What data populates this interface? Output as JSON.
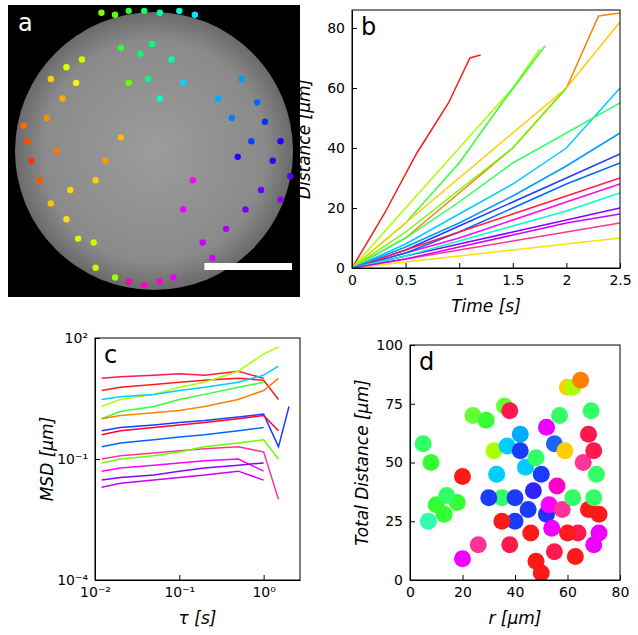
{
  "chart_data": [
    {
      "type": "scatter",
      "title": "a",
      "tick_labels": false,
      "xlim": [
        0,
        150
      ],
      "ylim": [
        0,
        150
      ],
      "scale_bar": 45,
      "x": [
        48,
        55,
        62,
        70,
        78,
        88,
        96,
        58,
        68,
        74,
        84,
        62,
        72,
        90,
        78,
        8,
        10,
        12,
        20,
        25,
        16,
        22,
        30,
        38,
        28,
        35,
        22,
        30,
        36,
        45,
        55,
        32,
        44,
        62,
        70,
        78,
        85,
        120,
        128,
        132,
        140,
        136,
        125,
        115,
        108,
        118,
        130,
        140,
        122,
        112,
        100,
        105,
        145,
        50,
        58,
        95,
        90,
        45
      ],
      "values": [
        146,
        145,
        147,
        147,
        146,
        147,
        145,
        128,
        125,
        130,
        122,
        110,
        112,
        110,
        102,
        88,
        80,
        70,
        92,
        75,
        60,
        112,
        118,
        122,
        102,
        110,
        48,
        40,
        30,
        15,
        10,
        55,
        28,
        8,
        6,
        8,
        10,
        112,
        100,
        90,
        80,
        70,
        80,
        92,
        102,
        72,
        55,
        50,
        45,
        35,
        28,
        20,
        62,
        70,
        82,
        60,
        45,
        60
      ],
      "colors": [
        "#7fff00",
        "#5fff10",
        "#33ff33",
        "#1aff66",
        "#00ff99",
        "#00ffcc",
        "#00e5ff",
        "#33ff33",
        "#00ff66",
        "#00ff80",
        "#00ffaa",
        "#66ff00",
        "#00ff80",
        "#00d5ff",
        "#00ffcc",
        "#ff6a00",
        "#ff4d00",
        "#ff3300",
        "#ff8c00",
        "#ff7700",
        "#ff5500",
        "#ffd000",
        "#e5ff00",
        "#ccff00",
        "#ffaa00",
        "#f0ff00",
        "#ffc400",
        "#ffe100",
        "#d0ff00",
        "#bfff00",
        "#9fff00",
        "#ffd700",
        "#c8ff00",
        "#ff00aa",
        "#ff00cc",
        "#ff00d4",
        "#e600ff",
        "#0099ff",
        "#0066ff",
        "#0033ff",
        "#1a00ff",
        "#3300ff",
        "#0044ff",
        "#0080ff",
        "#00aaff",
        "#2a00ff",
        "#6600ff",
        "#8800ff",
        "#7700ff",
        "#aa00ff",
        "#cc00ff",
        "#d400ff",
        "#5500ff",
        "#ff9900",
        "#ffbb00",
        "#ff00ff",
        "#ee00ff",
        "#ffcc00"
      ]
    },
    {
      "type": "line",
      "title": "b",
      "xlabel": "Time [s]",
      "ylabel": "Distance [μm]",
      "xlim": [
        0,
        2.5
      ],
      "xticks": [
        0,
        0.5,
        1,
        1.5,
        2,
        2.5
      ],
      "ylim": [
        0,
        86
      ],
      "yticks": [
        0,
        20,
        40,
        60,
        80
      ],
      "series": [
        {
          "color": "#ff1a1a",
          "x": [
            0,
            0.3,
            0.6,
            0.9,
            1.1,
            1.2
          ],
          "values": [
            0,
            18,
            38,
            55,
            70,
            71
          ]
        },
        {
          "color": "#aaff00",
          "x": [
            0,
            0.5,
            1,
            1.5,
            1.75
          ],
          "values": [
            0,
            20,
            40,
            60,
            73
          ]
        },
        {
          "color": "#33ff33",
          "x": [
            0,
            0.5,
            1,
            1.4,
            1.8
          ],
          "values": [
            0,
            15,
            35,
            55,
            74
          ]
        },
        {
          "color": "#ff8000",
          "x": [
            0,
            0.5,
            1,
            1.5,
            2,
            2.3,
            2.5
          ],
          "values": [
            0,
            10,
            25,
            40,
            60,
            84,
            85
          ]
        },
        {
          "color": "#ffcc00",
          "x": [
            0,
            0.5,
            1,
            1.5,
            2,
            2.5
          ],
          "values": [
            0,
            15,
            30,
            45,
            60,
            82
          ]
        },
        {
          "color": "#00ccff",
          "x": [
            0,
            0.5,
            1,
            1.5,
            2,
            2.5
          ],
          "values": [
            0,
            8,
            18,
            28,
            40,
            60
          ]
        },
        {
          "color": "#1a3cff",
          "x": [
            0,
            0.5,
            1,
            1.5,
            2,
            2.5
          ],
          "values": [
            0,
            6,
            14,
            22,
            30,
            38
          ]
        },
        {
          "color": "#33ff66",
          "x": [
            0,
            0.5,
            1,
            1.5,
            2,
            2.5
          ],
          "values": [
            0,
            10,
            22,
            35,
            45,
            55
          ]
        },
        {
          "color": "#ff00ff",
          "x": [
            0,
            0.5,
            1,
            1.5,
            2,
            2.5
          ],
          "values": [
            0,
            5,
            10,
            16,
            22,
            28
          ]
        },
        {
          "color": "#8800ff",
          "x": [
            0,
            0.5,
            1,
            1.5,
            2,
            2.5
          ],
          "values": [
            0,
            4,
            8,
            12,
            16,
            20
          ]
        },
        {
          "color": "#ff3399",
          "x": [
            0,
            0.5,
            1,
            1.5,
            2,
            2.5
          ],
          "values": [
            0,
            3,
            6,
            9,
            12,
            15
          ]
        },
        {
          "color": "#ffe100",
          "x": [
            0,
            0.5,
            1,
            1.5,
            2,
            2.5
          ],
          "values": [
            0,
            2,
            4,
            6,
            8,
            10
          ]
        },
        {
          "color": "#0066ff",
          "x": [
            0,
            0.5,
            1,
            1.5,
            2,
            2.5
          ],
          "values": [
            0,
            5,
            12,
            20,
            28,
            35
          ]
        },
        {
          "color": "#ff1a4d",
          "x": [
            0,
            0.5,
            1,
            1.5,
            2,
            2.5
          ],
          "values": [
            0,
            6,
            12,
            18,
            24,
            30
          ]
        },
        {
          "color": "#00ffcc",
          "x": [
            0,
            0.5,
            1,
            1.5,
            2,
            2.5
          ],
          "values": [
            0,
            4,
            9,
            14,
            19,
            25
          ]
        },
        {
          "color": "#cc00ff",
          "x": [
            0,
            0.5,
            1,
            1.5,
            2,
            2.5
          ],
          "values": [
            0,
            3,
            7,
            11,
            15,
            18
          ]
        },
        {
          "color": "#66ff00",
          "x": [
            0,
            0.5,
            1,
            1.5,
            2
          ],
          "values": [
            0,
            12,
            26,
            40,
            60
          ]
        },
        {
          "color": "#0099ff",
          "x": [
            0,
            0.5,
            1,
            1.5,
            2,
            2.5
          ],
          "values": [
            0,
            7,
            15,
            24,
            34,
            45
          ]
        }
      ]
    },
    {
      "type": "line",
      "title": "c",
      "xlabel": "τ [s]",
      "ylabel": "MSD [μm]",
      "log": true,
      "xlim": [
        0.01,
        2.7
      ],
      "xticks": [
        {
          "value": 0.01,
          "label": "10⁻²"
        },
        {
          "value": 0.1,
          "label": "10⁻¹"
        },
        {
          "value": 1,
          "label": "10⁰"
        }
      ],
      "ylim": [
        0.0001,
        100
      ],
      "yticks": [
        {
          "value": 0.0001,
          "label": "10⁻⁴"
        },
        {
          "value": 0.1,
          "label": "10⁻¹"
        },
        {
          "value": 100,
          "label": "10²"
        }
      ],
      "x": [
        0.012,
        0.02,
        0.05,
        0.1,
        0.2,
        0.5,
        1,
        1.5,
        2
      ],
      "series": [
        {
          "color": "#ff1a1a",
          "values": [
            5,
            6,
            7,
            8,
            9,
            10,
            9,
            3,
            null
          ]
        },
        {
          "color": "#ff1a4d",
          "values": [
            10,
            11,
            12,
            13,
            12,
            15,
            10,
            null,
            null
          ]
        },
        {
          "color": "#aaff00",
          "values": [
            2,
            3,
            4,
            6,
            8,
            15,
            40,
            60,
            null
          ]
        },
        {
          "color": "#33ff33",
          "values": [
            1,
            1.5,
            2,
            3,
            4,
            6,
            8,
            null,
            null
          ]
        },
        {
          "color": "#00ccff",
          "values": [
            3,
            3.5,
            4,
            5,
            6,
            8,
            12,
            20,
            null
          ]
        },
        {
          "color": "#1a3cff",
          "values": [
            0.5,
            0.6,
            0.7,
            0.8,
            0.9,
            1.1,
            1.3,
            0.2,
            2
          ]
        },
        {
          "color": "#0066ff",
          "values": [
            0.2,
            0.25,
            0.3,
            0.35,
            0.4,
            0.5,
            0.6,
            null,
            null
          ]
        },
        {
          "color": "#ff00ff",
          "values": [
            0.05,
            0.06,
            0.07,
            0.08,
            0.09,
            0.1,
            0.05,
            null,
            null
          ]
        },
        {
          "color": "#8800ff",
          "values": [
            0.03,
            0.035,
            0.04,
            0.05,
            0.06,
            0.07,
            0.08,
            null,
            null
          ]
        },
        {
          "color": "#ff3399",
          "values": [
            0.1,
            0.12,
            0.14,
            0.16,
            0.18,
            0.2,
            0.15,
            0.01,
            null
          ]
        },
        {
          "color": "#cc00ff",
          "values": [
            0.02,
            0.025,
            0.03,
            0.035,
            0.04,
            0.05,
            0.03,
            null,
            null
          ]
        },
        {
          "color": "#ff0033",
          "values": [
            0.4,
            0.5,
            0.6,
            0.7,
            0.8,
            1,
            1.2,
            0.5,
            null
          ]
        },
        {
          "color": "#66ff00",
          "values": [
            0.08,
            0.1,
            0.12,
            0.15,
            0.2,
            0.25,
            0.3,
            0.1,
            null
          ]
        },
        {
          "color": "#ff8000",
          "values": [
            1,
            1.2,
            1.4,
            1.6,
            2,
            3,
            5,
            10,
            null
          ]
        }
      ]
    },
    {
      "type": "scatter",
      "title": "d",
      "xlabel": "r [μm]",
      "ylabel": "Total Distance [μm]",
      "xlim": [
        0,
        80
      ],
      "xticks": [
        0,
        20,
        40,
        60,
        80
      ],
      "ylim": [
        0,
        100
      ],
      "yticks": [
        0,
        25,
        50,
        75,
        100
      ],
      "x": [
        5,
        7,
        10,
        13,
        18,
        14,
        8,
        24,
        20,
        26,
        20,
        29,
        32,
        33,
        35,
        36,
        38,
        37,
        40,
        40,
        42,
        44,
        45,
        46,
        47,
        48,
        48,
        50,
        50,
        52,
        53,
        54,
        55,
        55,
        56,
        57,
        58,
        59,
        60,
        62,
        62,
        63,
        64,
        65,
        66,
        68,
        68,
        69,
        70,
        70,
        70,
        72,
        72,
        71,
        60,
        42,
        35,
        30,
        38,
        52
      ],
      "values": [
        58,
        25,
        32,
        28,
        33,
        36,
        50,
        70,
        44,
        15,
        9,
        68,
        55,
        45,
        35,
        74,
        72,
        57,
        35,
        25,
        62,
        48,
        30,
        20,
        38,
        8,
        52,
        3,
        45,
        28,
        32,
        22,
        58,
        12,
        40,
        70,
        30,
        55,
        82,
        82,
        35,
        10,
        20,
        85,
        50,
        30,
        62,
        72,
        55,
        15,
        35,
        20,
        28,
        45,
        20,
        55,
        25,
        35,
        15,
        65
      ],
      "colors": [
        "#33ff66",
        "#33ffaa",
        "#33ff33",
        "#33ff33",
        "#33ff33",
        "#33ff66",
        "#33ff33",
        "#66ff33",
        "#ff1a1a",
        "#ff3399",
        "#ee00ff",
        "#33ff33",
        "#aaff00",
        "#00ccff",
        "#33ff66",
        "#66ff33",
        "#ff1a4d",
        "#00ccff",
        "#1a3cff",
        "#1a3cff",
        "#00aaff",
        "#00ccff",
        "#1a3cff",
        "#ff1a1a",
        "#3322ff",
        "#ff1a1a",
        "#33ff66",
        "#ff1a1a",
        "#1a3cff",
        "#2233ff",
        "#ff00ff",
        "#ee00ff",
        "#1a66ff",
        "#ff1a4d",
        "#ff00cc",
        "#33ff66",
        "#ff3399",
        "#ffcc00",
        "#ffcc00",
        "#aaff00",
        "#33ff66",
        "#ff1a1a",
        "#ff1a4d",
        "#ff8000",
        "#ff3399",
        "#ff1a1a",
        "#ff1a4d",
        "#33ff66",
        "#ff1a4d",
        "#ee00ff",
        "#33ff66",
        "#ee00ff",
        "#ff1a1a",
        "#33ff66",
        "#ff1a1a",
        "#1a3cff",
        "#ff1a1a",
        "#1a3cff",
        "#ff1a4d",
        "#ee00ff"
      ]
    }
  ]
}
